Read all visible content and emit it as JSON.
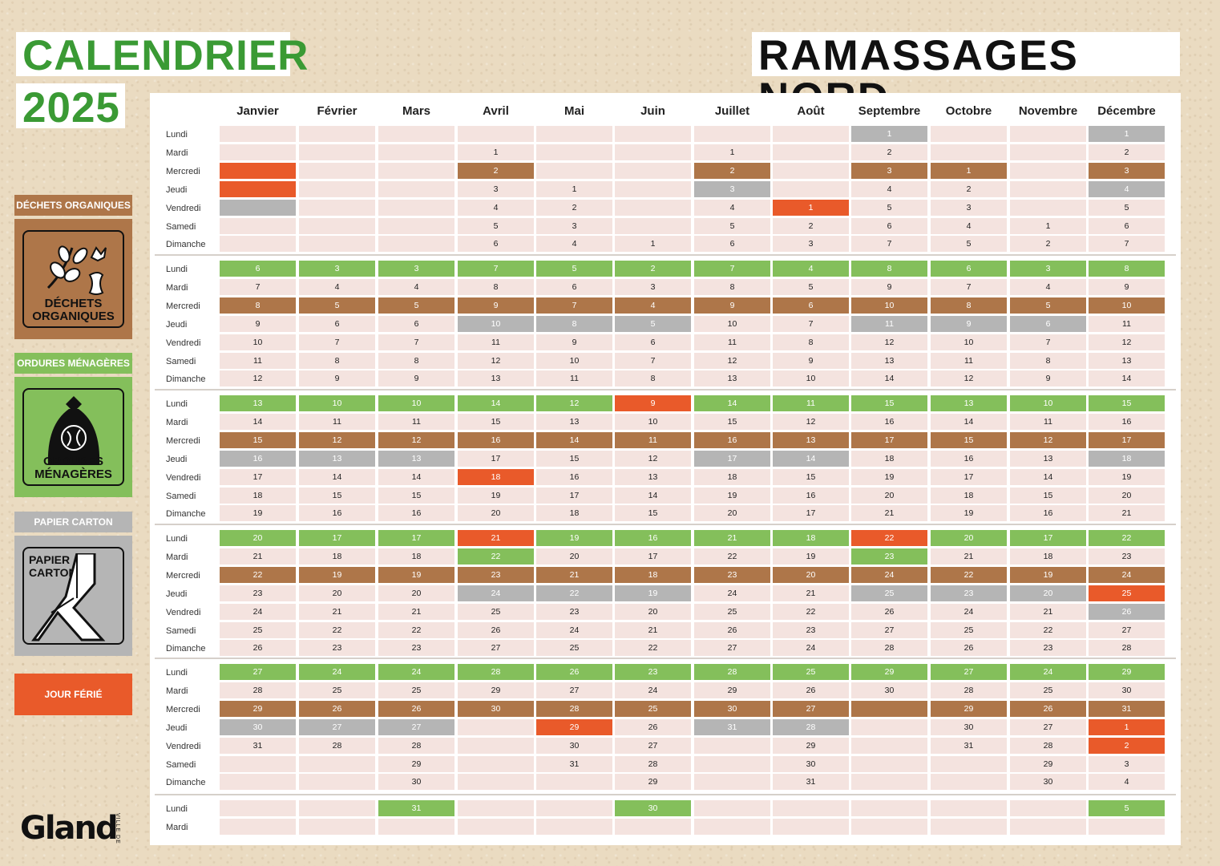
{
  "header": {
    "title_left": "CALENDRIER",
    "year": "2025",
    "title_right": "RAMASSAGES NORD"
  },
  "legend": {
    "organic_label": "DÉCHETS ORGANIQUES",
    "organic_caption_1": "DÉCHETS",
    "organic_caption_2": "ORGANIQUES",
    "household_label": "ORDURES MÉNAGÈRES",
    "household_caption": "ORDURES MÉNAGÈRES",
    "paper_label": "PAPIER CARTON",
    "paper_caption_1": "PAPIER",
    "paper_caption_2": "CARTON",
    "holiday_label": "JOUR FÉRIÉ"
  },
  "logo": {
    "name": "Gland",
    "prefix": "VILLE DE"
  },
  "colors": {
    "green": "#84bf5b",
    "brown": "#ae7649",
    "grey": "#b5b5b5",
    "orange": "#e95a2a",
    "pink": "#f4e3df"
  },
  "months": [
    "Janvier",
    "Février",
    "Mars",
    "Avril",
    "Mai",
    "Juin",
    "Juillet",
    "Août",
    "Septembre",
    "Octobre",
    "Novembre",
    "Décembre"
  ],
  "days": [
    "Lundi",
    "Mardi",
    "Mercredi",
    "Jeudi",
    "Vendredi",
    "Samedi",
    "Dimanche"
  ],
  "grid": [
    [
      [
        "",
        "",
        "",
        "",
        "",
        "",
        ""
      ],
      [
        "",
        "",
        "",
        "",
        "",
        "",
        ""
      ],
      [
        "",
        "",
        "",
        "",
        "",
        "",
        ""
      ],
      [
        "",
        "1",
        "2",
        "3",
        "4",
        "5",
        "6"
      ],
      [
        "",
        "",
        "",
        "1",
        "2",
        "3",
        "4"
      ],
      [
        "",
        "",
        "",
        "",
        "",
        "",
        "1"
      ],
      [
        "",
        "1",
        "2",
        "3",
        "4",
        "5",
        "6"
      ],
      [
        "",
        "",
        "",
        "",
        "1",
        "2",
        "3"
      ],
      [
        "1",
        "2",
        "3",
        "4",
        "5",
        "6",
        "7"
      ],
      [
        "",
        "",
        "1",
        "2",
        "3",
        "4",
        "5"
      ],
      [
        "",
        "",
        "",
        "",
        "",
        "1",
        "2"
      ],
      [
        "1",
        "2",
        "3",
        "4",
        "5",
        "6",
        "7"
      ]
    ],
    [
      [
        "6",
        "7",
        "8",
        "9",
        "10",
        "11",
        "12"
      ],
      [
        "3",
        "4",
        "5",
        "6",
        "7",
        "8",
        "9"
      ],
      [
        "3",
        "4",
        "5",
        "6",
        "7",
        "8",
        "9"
      ],
      [
        "7",
        "8",
        "9",
        "10",
        "11",
        "12",
        "13"
      ],
      [
        "5",
        "6",
        "7",
        "8",
        "9",
        "10",
        "11"
      ],
      [
        "2",
        "3",
        "4",
        "5",
        "6",
        "7",
        "8"
      ],
      [
        "7",
        "8",
        "9",
        "10",
        "11",
        "12",
        "13"
      ],
      [
        "4",
        "5",
        "6",
        "7",
        "8",
        "9",
        "10"
      ],
      [
        "8",
        "9",
        "10",
        "11",
        "12",
        "13",
        "14"
      ],
      [
        "6",
        "7",
        "8",
        "9",
        "10",
        "11",
        "12"
      ],
      [
        "3",
        "4",
        "5",
        "6",
        "7",
        "8",
        "9"
      ],
      [
        "8",
        "9",
        "10",
        "11",
        "12",
        "13",
        "14"
      ]
    ],
    [
      [
        "13",
        "14",
        "15",
        "16",
        "17",
        "18",
        "19"
      ],
      [
        "10",
        "11",
        "12",
        "13",
        "14",
        "15",
        "16"
      ],
      [
        "10",
        "11",
        "12",
        "13",
        "14",
        "15",
        "16"
      ],
      [
        "14",
        "15",
        "16",
        "17",
        "18",
        "19",
        "20"
      ],
      [
        "12",
        "13",
        "14",
        "15",
        "16",
        "17",
        "18"
      ],
      [
        "9",
        "10",
        "11",
        "12",
        "13",
        "14",
        "15"
      ],
      [
        "14",
        "15",
        "16",
        "17",
        "18",
        "19",
        "20"
      ],
      [
        "11",
        "12",
        "13",
        "14",
        "15",
        "16",
        "17"
      ],
      [
        "15",
        "16",
        "17",
        "18",
        "19",
        "20",
        "21"
      ],
      [
        "13",
        "14",
        "15",
        "16",
        "17",
        "18",
        "19"
      ],
      [
        "10",
        "11",
        "12",
        "13",
        "14",
        "15",
        "16"
      ],
      [
        "15",
        "16",
        "17",
        "18",
        "19",
        "20",
        "21"
      ]
    ],
    [
      [
        "20",
        "21",
        "22",
        "23",
        "24",
        "25",
        "26"
      ],
      [
        "17",
        "18",
        "19",
        "20",
        "21",
        "22",
        "23"
      ],
      [
        "17",
        "18",
        "19",
        "20",
        "21",
        "22",
        "23"
      ],
      [
        "21",
        "22",
        "23",
        "24",
        "25",
        "26",
        "27"
      ],
      [
        "19",
        "20",
        "21",
        "22",
        "23",
        "24",
        "25"
      ],
      [
        "16",
        "17",
        "18",
        "19",
        "20",
        "21",
        "22"
      ],
      [
        "21",
        "22",
        "23",
        "24",
        "25",
        "26",
        "27"
      ],
      [
        "18",
        "19",
        "20",
        "21",
        "22",
        "23",
        "24"
      ],
      [
        "22",
        "23",
        "24",
        "25",
        "26",
        "27",
        "28"
      ],
      [
        "20",
        "21",
        "22",
        "23",
        "24",
        "25",
        "26"
      ],
      [
        "17",
        "18",
        "19",
        "20",
        "21",
        "22",
        "23"
      ],
      [
        "22",
        "23",
        "24",
        "25",
        "26",
        "27",
        "28"
      ]
    ],
    [
      [
        "27",
        "28",
        "29",
        "30",
        "31",
        "",
        ""
      ],
      [
        "24",
        "25",
        "26",
        "27",
        "28",
        "",
        ""
      ],
      [
        "24",
        "25",
        "26",
        "27",
        "28",
        "29",
        "30"
      ],
      [
        "28",
        "29",
        "30",
        "",
        "",
        "",
        ""
      ],
      [
        "26",
        "27",
        "28",
        "29",
        "30",
        "31",
        ""
      ],
      [
        "23",
        "24",
        "25",
        "26",
        "27",
        "28",
        "29"
      ],
      [
        "28",
        "29",
        "30",
        "31",
        "",
        "",
        ""
      ],
      [
        "25",
        "26",
        "27",
        "28",
        "29",
        "30",
        "31"
      ],
      [
        "29",
        "30",
        "",
        "",
        "",
        "",
        ""
      ],
      [
        "27",
        "28",
        "29",
        "30",
        "31",
        "",
        ""
      ],
      [
        "24",
        "25",
        "26",
        "27",
        "28",
        "29",
        "30"
      ],
      [
        "29",
        "30",
        "31",
        "1",
        "2",
        "3",
        "4"
      ]
    ],
    [
      [
        "",
        ""
      ],
      [
        "",
        ""
      ],
      [
        "31",
        ""
      ],
      [
        "",
        ""
      ],
      [
        "",
        ""
      ],
      [
        "30",
        ""
      ],
      [
        "",
        ""
      ],
      [
        "",
        ""
      ],
      [
        "",
        ""
      ],
      [
        "",
        ""
      ],
      [
        "",
        ""
      ],
      [
        "5",
        ""
      ]
    ]
  ],
  "colorGrid": [
    [
      [
        "",
        "",
        "O",
        "O",
        "G",
        "",
        ""
      ],
      [
        "",
        "",
        "",
        "",
        "",
        "",
        ""
      ],
      [
        "",
        "",
        "",
        "",
        "",
        "",
        ""
      ],
      [
        "",
        "",
        "B",
        "",
        "",
        "",
        ""
      ],
      [
        "",
        "",
        "",
        "",
        "",
        "",
        ""
      ],
      [
        "",
        "",
        "",
        "",
        "",
        "",
        ""
      ],
      [
        "",
        "",
        "B",
        "G",
        "",
        "",
        ""
      ],
      [
        "",
        "",
        "",
        "",
        "O",
        "",
        ""
      ],
      [
        "G",
        "",
        "B",
        "",
        "",
        "",
        ""
      ],
      [
        "",
        "",
        "B",
        "",
        "",
        "",
        ""
      ],
      [
        "",
        "",
        "",
        "",
        "",
        "",
        ""
      ],
      [
        "G",
        "",
        "B",
        "G",
        "",
        "",
        ""
      ]
    ],
    [
      [
        "g",
        "",
        "b",
        "",
        "",
        "",
        ""
      ],
      [
        "g",
        "",
        "b",
        "",
        "",
        "",
        ""
      ],
      [
        "g",
        "",
        "b",
        "",
        "",
        "",
        ""
      ],
      [
        "g",
        "",
        "b",
        "G",
        "",
        "",
        ""
      ],
      [
        "g",
        "",
        "b",
        "G",
        "",
        "",
        ""
      ],
      [
        "g",
        "",
        "b",
        "G",
        "",
        "",
        ""
      ],
      [
        "g",
        "",
        "b",
        "",
        "",
        "",
        ""
      ],
      [
        "g",
        "",
        "b",
        "",
        "",
        "",
        ""
      ],
      [
        "g",
        "",
        "b",
        "G",
        "",
        "",
        ""
      ],
      [
        "g",
        "",
        "b",
        "G",
        "",
        "",
        ""
      ],
      [
        "g",
        "",
        "b",
        "G",
        "",
        "",
        ""
      ],
      [
        "g",
        "",
        "b",
        "",
        "",
        "",
        ""
      ]
    ],
    [
      [
        "g",
        "",
        "b",
        "G",
        "",
        "",
        ""
      ],
      [
        "g",
        "",
        "b",
        "G",
        "",
        "",
        ""
      ],
      [
        "g",
        "",
        "b",
        "G",
        "",
        "",
        ""
      ],
      [
        "g",
        "",
        "b",
        "",
        "O",
        "",
        ""
      ],
      [
        "g",
        "",
        "b",
        "",
        "",
        "",
        ""
      ],
      [
        "O",
        "",
        "b",
        "",
        "",
        "",
        ""
      ],
      [
        "g",
        "",
        "b",
        "G",
        "",
        "",
        ""
      ],
      [
        "g",
        "",
        "b",
        "G",
        "",
        "",
        ""
      ],
      [
        "g",
        "",
        "b",
        "",
        "",
        "",
        ""
      ],
      [
        "g",
        "",
        "b",
        "",
        "",
        "",
        ""
      ],
      [
        "g",
        "",
        "b",
        "",
        "",
        "",
        ""
      ],
      [
        "g",
        "",
        "b",
        "G",
        "",
        "",
        ""
      ]
    ],
    [
      [
        "g",
        "",
        "b",
        "",
        "",
        "",
        ""
      ],
      [
        "g",
        "",
        "b",
        "",
        "",
        "",
        ""
      ],
      [
        "g",
        "",
        "b",
        "",
        "",
        "",
        ""
      ],
      [
        "O",
        "g",
        "b",
        "G",
        "",
        "",
        ""
      ],
      [
        "g",
        "",
        "b",
        "G",
        "",
        "",
        ""
      ],
      [
        "g",
        "",
        "b",
        "G",
        "",
        "",
        ""
      ],
      [
        "g",
        "",
        "b",
        "",
        "",
        "",
        ""
      ],
      [
        "g",
        "",
        "b",
        "",
        "",
        "",
        ""
      ],
      [
        "O",
        "g",
        "b",
        "G",
        "",
        "",
        ""
      ],
      [
        "g",
        "",
        "b",
        "G",
        "",
        "",
        ""
      ],
      [
        "g",
        "",
        "b",
        "G",
        "",
        "",
        ""
      ],
      [
        "g",
        "",
        "b",
        "O",
        "G",
        "",
        ""
      ]
    ],
    [
      [
        "g",
        "",
        "b",
        "G",
        "",
        "",
        ""
      ],
      [
        "g",
        "",
        "b",
        "G",
        "",
        "",
        ""
      ],
      [
        "g",
        "",
        "b",
        "G",
        "",
        "",
        ""
      ],
      [
        "g",
        "",
        "b",
        "",
        "",
        "",
        ""
      ],
      [
        "g",
        "",
        "b",
        "O",
        "",
        "",
        ""
      ],
      [
        "g",
        "",
        "b",
        "",
        "",
        "",
        ""
      ],
      [
        "g",
        "",
        "b",
        "G",
        "",
        "",
        ""
      ],
      [
        "g",
        "",
        "b",
        "G",
        "",
        "",
        ""
      ],
      [
        "g",
        "",
        "b",
        "",
        "",
        "",
        ""
      ],
      [
        "g",
        "",
        "b",
        "",
        "",
        "",
        ""
      ],
      [
        "g",
        "",
        "b",
        "",
        "",
        "",
        ""
      ],
      [
        "g",
        "",
        "b",
        "O",
        "O",
        "",
        ""
      ]
    ],
    [
      [
        "",
        ""
      ],
      [
        "",
        ""
      ],
      [
        "g",
        ""
      ],
      [
        "",
        ""
      ],
      [
        "",
        ""
      ],
      [
        "g",
        ""
      ],
      [
        "",
        ""
      ],
      [
        "",
        ""
      ],
      [
        "",
        ""
      ],
      [
        "",
        ""
      ],
      [
        "",
        ""
      ],
      [
        "g",
        ""
      ]
    ]
  ]
}
